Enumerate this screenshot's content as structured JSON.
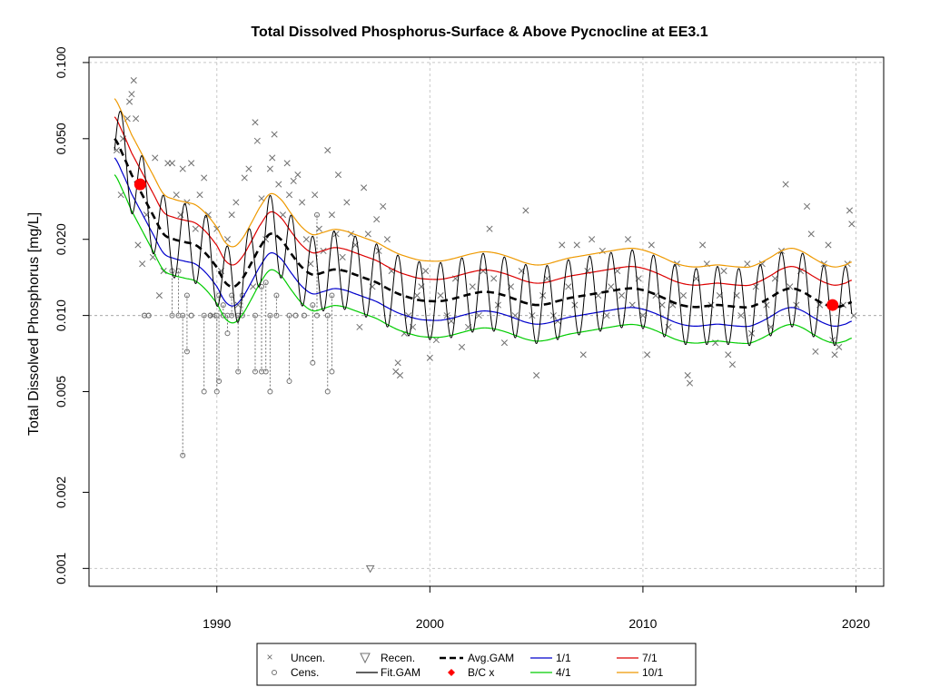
{
  "chart_data": {
    "type": "line",
    "title": "Total Dissolved Phosphorus-Surface & Above Pycnocline at EE3.1",
    "xlabel": "",
    "ylabel": "Total Dissolved Phosphorus [mg/L]",
    "y_scale": "log",
    "xlim": [
      1984.0,
      2021.3
    ],
    "ylim": [
      0.00085,
      0.105
    ],
    "x_ticks": [
      1990,
      2000,
      2010,
      2020
    ],
    "y_ticks": [
      0.001,
      0.002,
      0.005,
      0.01,
      0.02,
      0.05,
      0.1
    ],
    "y_tick_labels": [
      "0.001",
      "0.002",
      "0.005",
      "0.010",
      "0.020",
      "0.050",
      "0.100"
    ],
    "grid": true,
    "reference_line_y": 0.01,
    "legend_placement": "bottom-center",
    "legend": [
      {
        "label": "Uncen.",
        "symbol": "x-marker"
      },
      {
        "label": "Recen.",
        "symbol": "triangle-down"
      },
      {
        "label": "Avg.GAM",
        "symbol": "dashed-line"
      },
      {
        "label": "1/1",
        "symbol": "line"
      },
      {
        "label": "7/1",
        "symbol": "line"
      },
      {
        "label": "Cens.",
        "symbol": "circle-open"
      },
      {
        "label": "Fit.GAM",
        "symbol": "line"
      },
      {
        "label": "B/C x",
        "symbol": "filled-diamond"
      },
      {
        "label": "4/1",
        "symbol": "line"
      },
      {
        "label": "10/1",
        "symbol": "line"
      }
    ],
    "colors": {
      "uncensored": "#707070",
      "censored": "#707070",
      "fit_gam": "#000000",
      "avg_gam": "#000000",
      "jan1": "#0000cc",
      "apr1": "#00cc00",
      "jul1": "#dd0000",
      "oct1": "#ee9900",
      "baseline_current": "#ff0000"
    },
    "avg_gam": {
      "x": [
        1985.2,
        1985.6,
        1986.0,
        1986.5,
        1987.0,
        1987.5,
        1988.0,
        1988.5,
        1989.0,
        1989.5,
        1990.0,
        1990.4,
        1990.8,
        1991.2,
        1991.6,
        1992.0,
        1992.5,
        1993.0,
        1993.5,
        1994.0,
        1994.5,
        1995.0,
        1995.5,
        1996.0,
        1996.5,
        1997.0,
        1997.5,
        1998.0,
        1998.5,
        1999.0,
        1999.5,
        2000.0,
        2000.5,
        2001.0,
        2001.5,
        2002.0,
        2002.5,
        2003.0,
        2003.5,
        2004.0,
        2004.5,
        2005.0,
        2005.5,
        2006.0,
        2006.5,
        2007.0,
        2007.5,
        2008.0,
        2008.5,
        2009.0,
        2009.5,
        2010.0,
        2010.5,
        2011.0,
        2011.5,
        2012.0,
        2012.5,
        2013.0,
        2013.5,
        2014.0,
        2014.5,
        2015.0,
        2015.5,
        2016.0,
        2016.5,
        2017.0,
        2017.5,
        2018.0,
        2018.5,
        2019.0,
        2019.5,
        2019.8
      ],
      "y": [
        0.05,
        0.043,
        0.036,
        0.03,
        0.025,
        0.021,
        0.02,
        0.0195,
        0.019,
        0.0175,
        0.0155,
        0.0135,
        0.013,
        0.014,
        0.016,
        0.0185,
        0.021,
        0.02,
        0.0175,
        0.0155,
        0.0145,
        0.0148,
        0.0152,
        0.015,
        0.0145,
        0.014,
        0.0135,
        0.0128,
        0.0122,
        0.0118,
        0.0115,
        0.0114,
        0.0114,
        0.0116,
        0.0119,
        0.0122,
        0.0124,
        0.0123,
        0.012,
        0.0116,
        0.0112,
        0.011,
        0.0111,
        0.0114,
        0.0117,
        0.0119,
        0.0121,
        0.0123,
        0.0125,
        0.0127,
        0.0128,
        0.0126,
        0.0122,
        0.0117,
        0.0112,
        0.0109,
        0.0108,
        0.0109,
        0.011,
        0.0109,
        0.0108,
        0.0108,
        0.0112,
        0.0118,
        0.0125,
        0.0128,
        0.0124,
        0.0117,
        0.0111,
        0.0108,
        0.011,
        0.0113
      ]
    },
    "seasonal_offsets": {
      "jan1": 0.84,
      "apr1": 0.72,
      "jul1": 1.22,
      "oct1": 1.44
    },
    "seasonal_amplitude": 1.42,
    "baseline_current_points": [
      {
        "x": 1986.4,
        "y": 0.033
      },
      {
        "x": 2018.9,
        "y": 0.011
      }
    ],
    "uncensored_points": [
      [
        1985.3,
        0.045
      ],
      [
        1985.5,
        0.03
      ],
      [
        1985.6,
        0.05
      ],
      [
        1985.8,
        0.06
      ],
      [
        1985.9,
        0.07
      ],
      [
        1986.0,
        0.075
      ],
      [
        1986.1,
        0.085
      ],
      [
        1986.2,
        0.06
      ],
      [
        1986.3,
        0.019
      ],
      [
        1986.5,
        0.016
      ],
      [
        1986.7,
        0.025
      ],
      [
        1987.0,
        0.017
      ],
      [
        1987.1,
        0.042
      ],
      [
        1987.3,
        0.012
      ],
      [
        1987.5,
        0.015
      ],
      [
        1987.7,
        0.04
      ],
      [
        1987.9,
        0.04
      ],
      [
        1988.1,
        0.03
      ],
      [
        1988.3,
        0.025
      ],
      [
        1988.4,
        0.038
      ],
      [
        1988.6,
        0.028
      ],
      [
        1988.8,
        0.04
      ],
      [
        1989.0,
        0.022
      ],
      [
        1989.2,
        0.03
      ],
      [
        1989.4,
        0.035
      ],
      [
        1989.6,
        0.025
      ],
      [
        1989.8,
        0.01
      ],
      [
        1990.0,
        0.022
      ],
      [
        1990.2,
        0.015
      ],
      [
        1990.5,
        0.02
      ],
      [
        1990.7,
        0.025
      ],
      [
        1990.9,
        0.028
      ],
      [
        1991.0,
        0.011
      ],
      [
        1991.3,
        0.035
      ],
      [
        1991.5,
        0.038
      ],
      [
        1991.7,
        0.013
      ],
      [
        1991.8,
        0.058
      ],
      [
        1991.9,
        0.049
      ],
      [
        1992.1,
        0.029
      ],
      [
        1992.3,
        0.02
      ],
      [
        1992.5,
        0.038
      ],
      [
        1992.6,
        0.042
      ],
      [
        1992.7,
        0.052
      ],
      [
        1992.9,
        0.033
      ],
      [
        1993.1,
        0.025
      ],
      [
        1993.3,
        0.04
      ],
      [
        1993.4,
        0.03
      ],
      [
        1993.6,
        0.034
      ],
      [
        1993.8,
        0.036
      ],
      [
        1994.0,
        0.028
      ],
      [
        1994.2,
        0.02
      ],
      [
        1994.4,
        0.016
      ],
      [
        1994.6,
        0.03
      ],
      [
        1994.8,
        0.022
      ],
      [
        1995.0,
        0.018
      ],
      [
        1995.2,
        0.045
      ],
      [
        1995.4,
        0.025
      ],
      [
        1995.6,
        0.021
      ],
      [
        1995.7,
        0.036
      ],
      [
        1995.9,
        0.017
      ],
      [
        1996.1,
        0.028
      ],
      [
        1996.3,
        0.021
      ],
      [
        1996.5,
        0.019
      ],
      [
        1996.7,
        0.009
      ],
      [
        1996.9,
        0.032
      ],
      [
        1997.1,
        0.021
      ],
      [
        1997.3,
        0.013
      ],
      [
        1997.5,
        0.024
      ],
      [
        1997.6,
        0.018
      ],
      [
        1997.8,
        0.027
      ],
      [
        1998.0,
        0.02
      ],
      [
        1998.2,
        0.015
      ],
      [
        1998.4,
        0.006
      ],
      [
        1998.5,
        0.0065
      ],
      [
        1998.6,
        0.0058
      ],
      [
        1998.8,
        0.0085
      ],
      [
        1999.0,
        0.01
      ],
      [
        1999.2,
        0.009
      ],
      [
        1999.4,
        0.012
      ],
      [
        1999.6,
        0.013
      ],
      [
        1999.8,
        0.015
      ],
      [
        2000.0,
        0.0068
      ],
      [
        2000.3,
        0.008
      ],
      [
        2000.5,
        0.012
      ],
      [
        2000.8,
        0.01
      ],
      [
        2001.0,
        0.0095
      ],
      [
        2001.2,
        0.014
      ],
      [
        2001.5,
        0.0075
      ],
      [
        2001.8,
        0.009
      ],
      [
        2002.0,
        0.013
      ],
      [
        2002.3,
        0.01
      ],
      [
        2002.5,
        0.015
      ],
      [
        2002.8,
        0.022
      ],
      [
        2003.0,
        0.014
      ],
      [
        2003.2,
        0.011
      ],
      [
        2003.5,
        0.0078
      ],
      [
        2003.8,
        0.013
      ],
      [
        2004.0,
        0.01
      ],
      [
        2004.3,
        0.015
      ],
      [
        2004.5,
        0.026
      ],
      [
        2004.8,
        0.01
      ],
      [
        2005.0,
        0.0058
      ],
      [
        2005.3,
        0.012
      ],
      [
        2005.5,
        0.014
      ],
      [
        2005.8,
        0.01
      ],
      [
        2006.0,
        0.0095
      ],
      [
        2006.2,
        0.019
      ],
      [
        2006.5,
        0.013
      ],
      [
        2006.8,
        0.011
      ],
      [
        2006.9,
        0.019
      ],
      [
        2007.2,
        0.007
      ],
      [
        2007.4,
        0.015
      ],
      [
        2007.6,
        0.02
      ],
      [
        2007.9,
        0.012
      ],
      [
        2008.1,
        0.018
      ],
      [
        2008.3,
        0.01
      ],
      [
        2008.5,
        0.013
      ],
      [
        2008.8,
        0.015
      ],
      [
        2009.0,
        0.012
      ],
      [
        2009.3,
        0.02
      ],
      [
        2009.5,
        0.011
      ],
      [
        2009.8,
        0.014
      ],
      [
        2010.0,
        0.01
      ],
      [
        2010.2,
        0.007
      ],
      [
        2010.4,
        0.019
      ],
      [
        2010.6,
        0.012
      ],
      [
        2010.9,
        0.011
      ],
      [
        2011.2,
        0.009
      ],
      [
        2011.4,
        0.011
      ],
      [
        2011.6,
        0.016
      ],
      [
        2011.9,
        0.012
      ],
      [
        2012.1,
        0.0058
      ],
      [
        2012.2,
        0.0054
      ],
      [
        2012.5,
        0.014
      ],
      [
        2012.8,
        0.019
      ],
      [
        2013.0,
        0.016
      ],
      [
        2013.2,
        0.011
      ],
      [
        2013.4,
        0.0078
      ],
      [
        2013.6,
        0.012
      ],
      [
        2013.8,
        0.015
      ],
      [
        2014.0,
        0.007
      ],
      [
        2014.2,
        0.0064
      ],
      [
        2014.4,
        0.012
      ],
      [
        2014.6,
        0.01
      ],
      [
        2014.9,
        0.016
      ],
      [
        2015.1,
        0.0085
      ],
      [
        2015.3,
        0.013
      ],
      [
        2015.6,
        0.016
      ],
      [
        2015.8,
        0.011
      ],
      [
        2016.0,
        0.009
      ],
      [
        2016.2,
        0.014
      ],
      [
        2016.5,
        0.018
      ],
      [
        2016.7,
        0.033
      ],
      [
        2016.9,
        0.013
      ],
      [
        2017.2,
        0.011
      ],
      [
        2017.4,
        0.015
      ],
      [
        2017.7,
        0.027
      ],
      [
        2017.9,
        0.021
      ],
      [
        2018.1,
        0.0072
      ],
      [
        2018.3,
        0.011
      ],
      [
        2018.5,
        0.016
      ],
      [
        2018.7,
        0.019
      ],
      [
        2018.9,
        0.008
      ],
      [
        2019.0,
        0.007
      ],
      [
        2019.2,
        0.0075
      ],
      [
        2019.4,
        0.011
      ],
      [
        2019.6,
        0.016
      ],
      [
        2019.7,
        0.026
      ],
      [
        2019.8,
        0.023
      ],
      [
        2019.9,
        0.01
      ]
    ],
    "censored_intervals": [
      [
        1986.6,
        0.01,
        0.01
      ],
      [
        1986.8,
        0.01,
        0.01
      ],
      [
        1987.9,
        0.01,
        0.015
      ],
      [
        1988.2,
        0.01,
        0.015
      ],
      [
        1988.4,
        0.0028,
        0.01
      ],
      [
        1988.6,
        0.0072,
        0.012
      ],
      [
        1988.8,
        0.01,
        0.01
      ],
      [
        1989.4,
        0.005,
        0.01
      ],
      [
        1989.7,
        0.01,
        0.01
      ],
      [
        1990.0,
        0.005,
        0.01
      ],
      [
        1990.1,
        0.0055,
        0.012
      ],
      [
        1990.3,
        0.01,
        0.011
      ],
      [
        1990.5,
        0.0085,
        0.01
      ],
      [
        1990.7,
        0.01,
        0.012
      ],
      [
        1991.0,
        0.006,
        0.01
      ],
      [
        1991.2,
        0.01,
        0.012
      ],
      [
        1991.8,
        0.006,
        0.01
      ],
      [
        1992.1,
        0.006,
        0.013
      ],
      [
        1992.3,
        0.006,
        0.0135
      ],
      [
        1992.5,
        0.005,
        0.01
      ],
      [
        1992.8,
        0.01,
        0.012
      ],
      [
        1993.4,
        0.0055,
        0.01
      ],
      [
        1993.7,
        0.01,
        0.01
      ],
      [
        1994.1,
        0.01,
        0.01
      ],
      [
        1994.5,
        0.0065,
        0.011
      ],
      [
        1994.7,
        0.01,
        0.025
      ],
      [
        1995.2,
        0.005,
        0.01
      ],
      [
        1995.4,
        0.006,
        0.012
      ]
    ],
    "recensored_points": [
      [
        1997.2,
        0.001
      ]
    ]
  },
  "legend_labels": {
    "uncen": "Uncen.",
    "recen": "Recen.",
    "avggam": "Avg.GAM",
    "jan1": "1/1",
    "jul1": "7/1",
    "cens": "Cens.",
    "fitgam": "Fit.GAM",
    "bcx": "B/C x",
    "apr1": "4/1",
    "oct1": "10/1"
  }
}
